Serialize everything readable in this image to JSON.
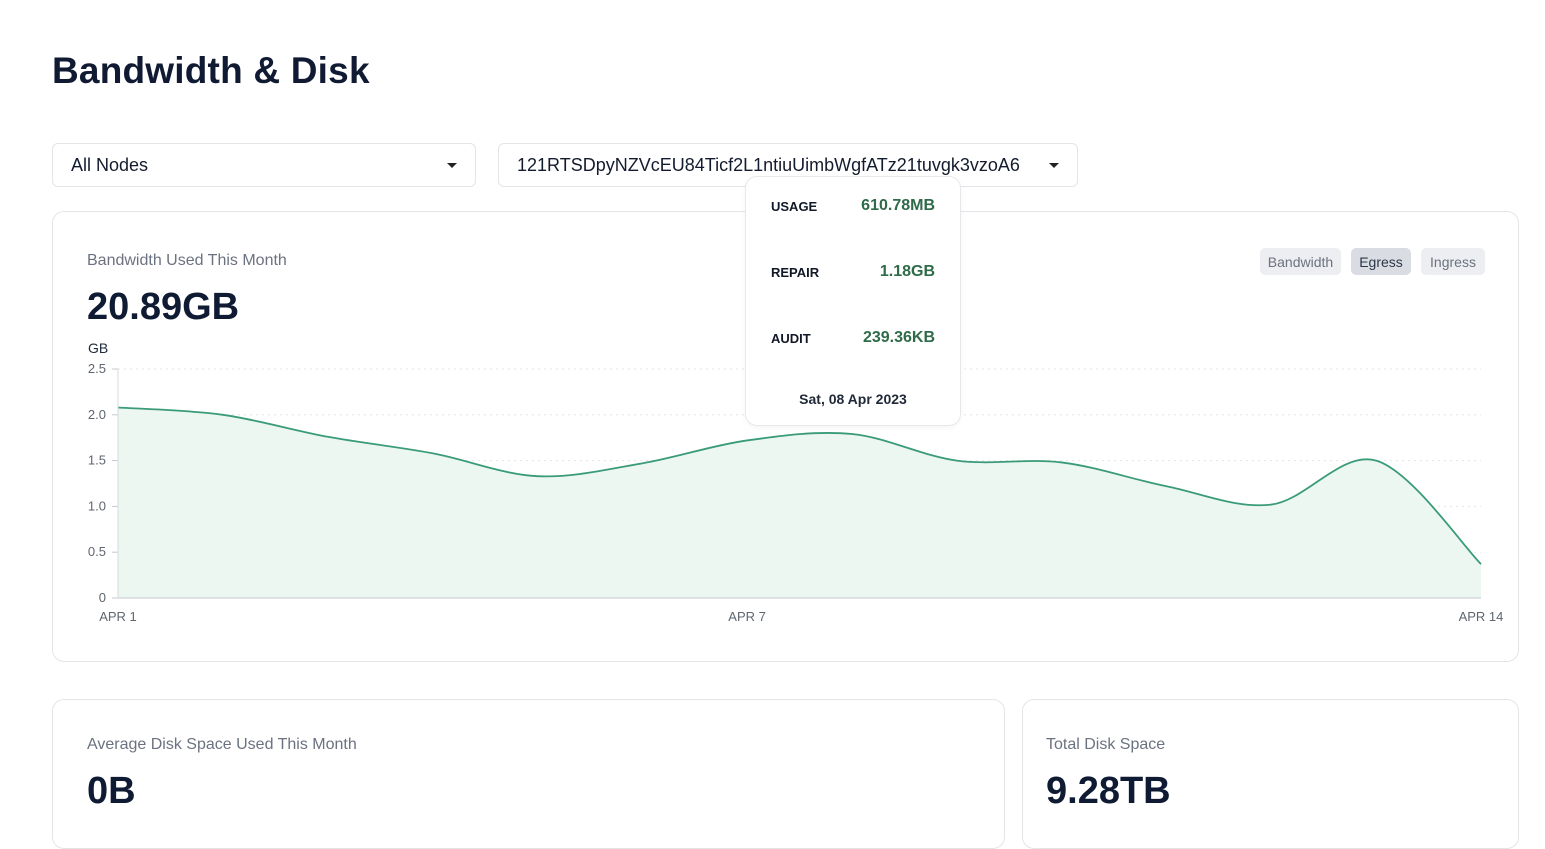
{
  "page": {
    "title": "Bandwidth & Disk"
  },
  "filters": {
    "node_select": {
      "value": "All Nodes"
    },
    "satellite_select": {
      "value": "121RTSDpyNZVcEU84Ticf2L1ntiuUimbWgfATz21tuvgk3vzoA6"
    }
  },
  "bandwidth_card": {
    "label": "Bandwidth Used This Month",
    "value": "20.89GB",
    "toggles": [
      {
        "label": "Bandwidth",
        "active": false
      },
      {
        "label": "Egress",
        "active": true
      },
      {
        "label": "Ingress",
        "active": false
      }
    ]
  },
  "tooltip": {
    "rows": [
      {
        "key": "USAGE",
        "value": "610.78MB"
      },
      {
        "key": "REPAIR",
        "value": "1.18GB"
      },
      {
        "key": "AUDIT",
        "value": "239.36KB"
      }
    ],
    "date": "Sat, 08 Apr 2023"
  },
  "disk_avg_card": {
    "label": "Average Disk Space Used This Month",
    "value": "0B"
  },
  "disk_total_card": {
    "label": "Total Disk Space",
    "value": "9.28TB"
  },
  "colors": {
    "line": "#3a9b78",
    "fill": "#ecf7f2",
    "grid": "#e2e5e9",
    "tooltip_value": "#2f6b48"
  },
  "chart_data": {
    "type": "area",
    "ylabel": "GB",
    "ylim": [
      0,
      2.5
    ],
    "yticks": [
      "0",
      "0.5",
      "1.0",
      "1.5",
      "2.0",
      "2.5"
    ],
    "xtick_labels": [
      "APR 1",
      "APR 7",
      "APR 14"
    ],
    "grid": true,
    "series": [
      {
        "x": [
          "2023-04-01",
          "2023-04-02",
          "2023-04-03",
          "2023-04-04",
          "2023-04-05",
          "2023-04-06",
          "2023-04-07",
          "2023-04-08",
          "2023-04-09",
          "2023-04-10",
          "2023-04-11",
          "2023-04-12",
          "2023-04-13",
          "2023-04-14"
        ],
        "values": [
          2.08,
          2.0,
          1.76,
          1.58,
          1.33,
          1.47,
          1.72,
          1.79,
          1.5,
          1.48,
          1.22,
          1.02,
          1.5,
          0.37
        ]
      }
    ]
  }
}
